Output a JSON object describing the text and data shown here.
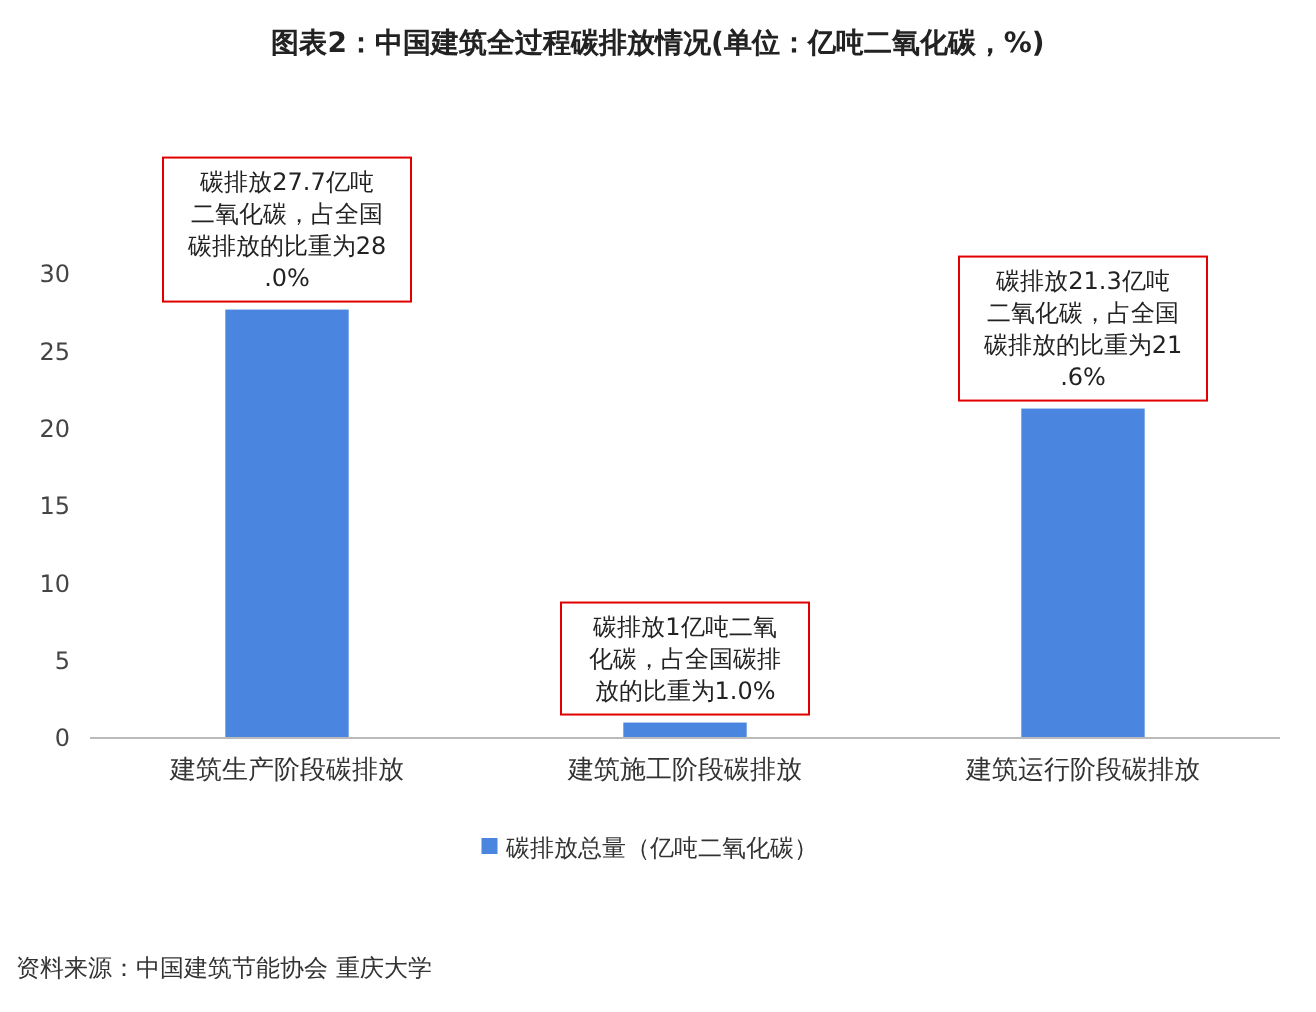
{
  "chart_data": {
    "type": "bar",
    "title": "图表2：中国建筑全过程碳排放情况(单位：亿吨二氧化碳，%)",
    "categories": [
      "建筑生产阶段碳排放",
      "建筑施工阶段碳排放",
      "建筑运行阶段碳排放"
    ],
    "series": [
      {
        "name": "碳排放总量（亿吨二氧化碳）",
        "color": "#4a86e0",
        "values": [
          27.7,
          1,
          21.3
        ]
      }
    ],
    "ylim": [
      0,
      30
    ],
    "yticks": [
      0,
      5,
      10,
      15,
      20,
      25,
      30
    ],
    "grid": false,
    "legend": "bottom",
    "annotations": [
      {
        "text": "碳排放27.7亿吨二氧化碳，占全国碳排放的比重为28.0%",
        "x": "建筑生产阶段碳排放",
        "y": 27.7
      },
      {
        "text": "碳排放1亿吨二氧化碳，占全国碳排放的比重为1.0%",
        "x": "建筑施工阶段碳排放",
        "y": 1
      },
      {
        "text": "碳排放21.3亿吨二氧化碳，占全国碳排放的比重为21.6%",
        "x": "建筑运行阶段碳排放",
        "y": 21.3
      },
      "资料来源：中国建筑节能协会 重庆大学"
    ]
  }
}
